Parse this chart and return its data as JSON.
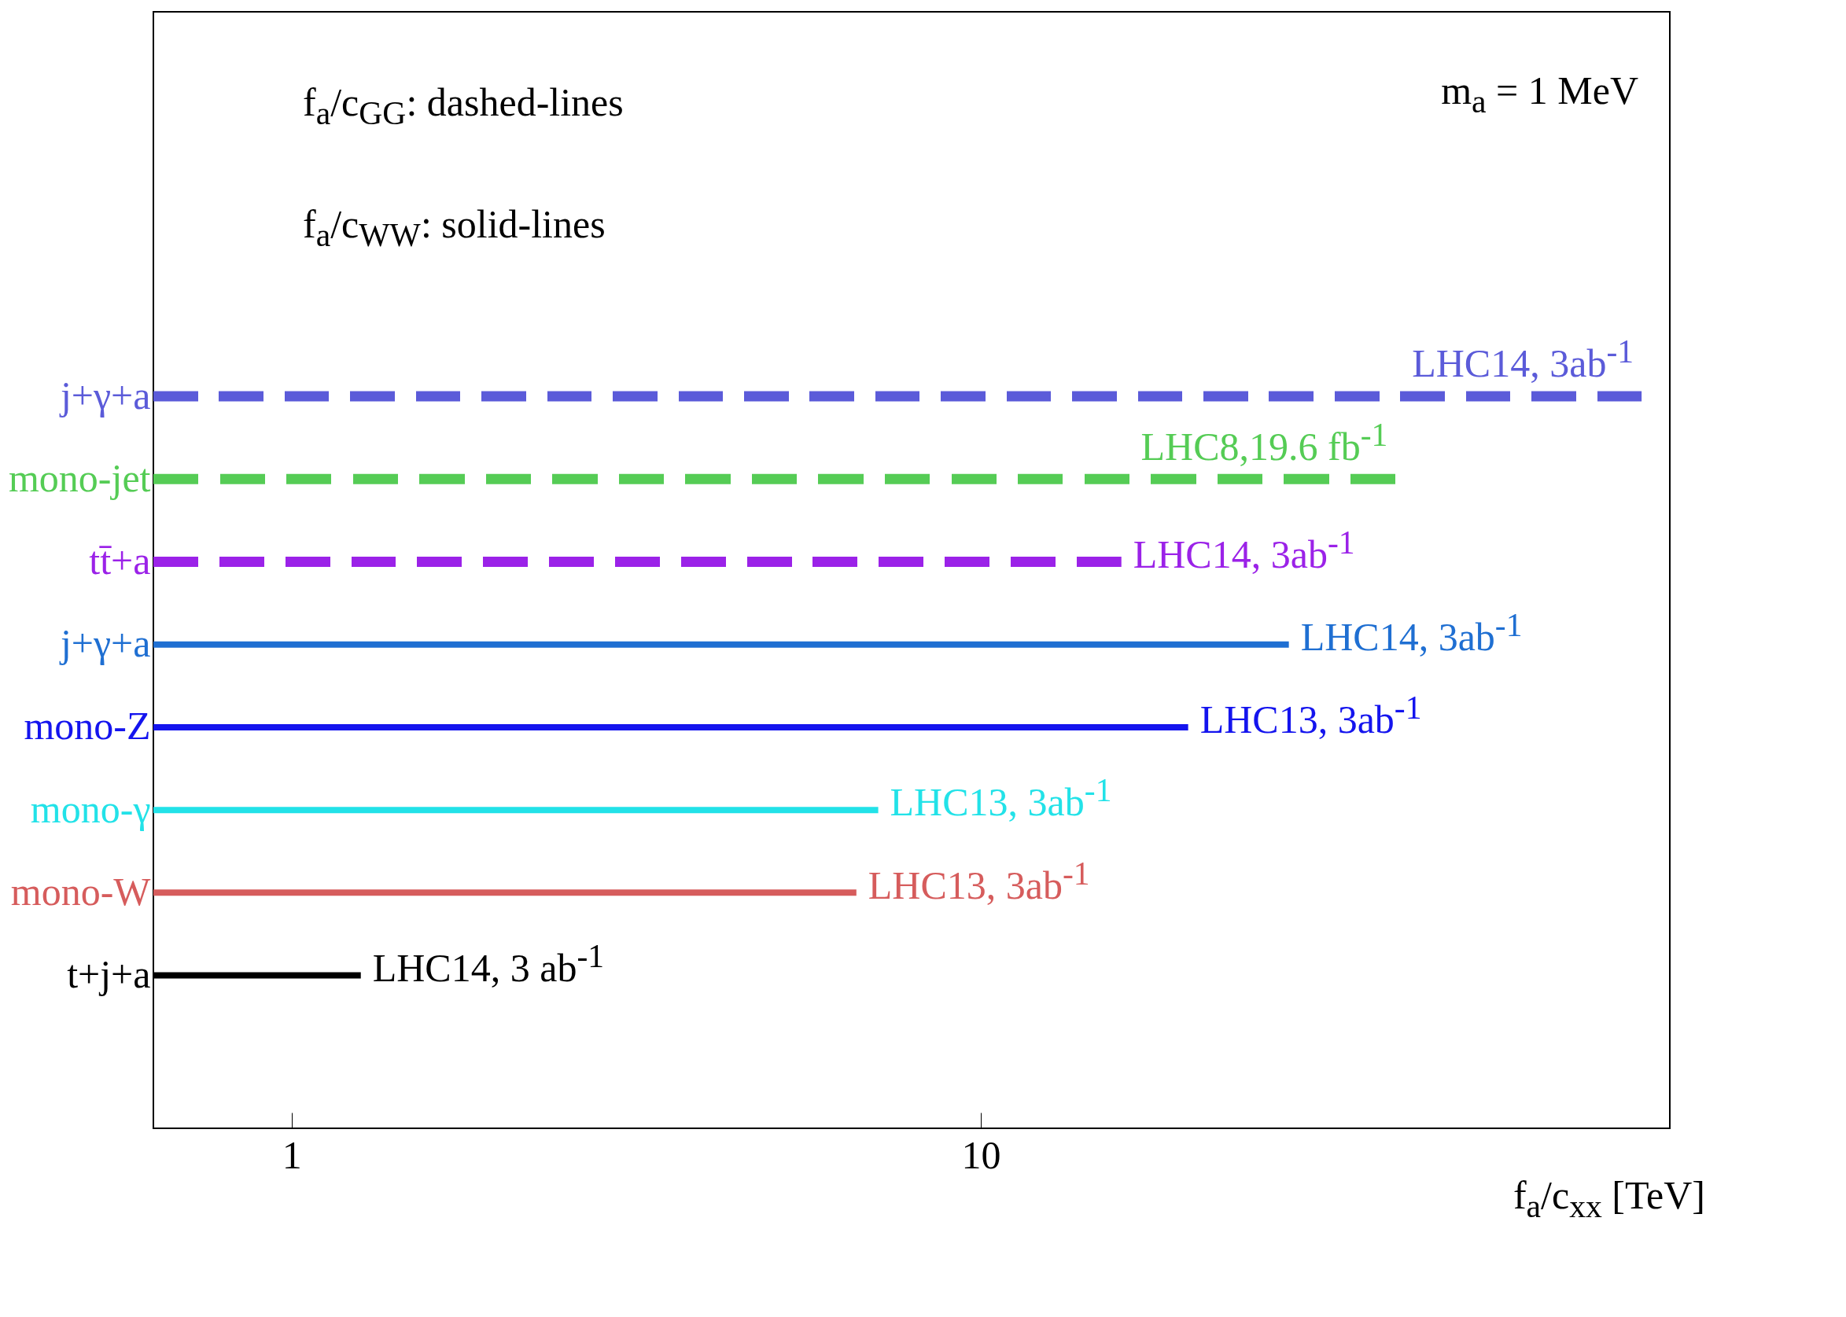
{
  "chart_data": {
    "type": "bar",
    "orientation": "horizontal",
    "log": "x",
    "title": "m$_{a}$ = 1 MeV",
    "xlabel": "f$_{a}$/c$_{xx}$ [TeV]",
    "categories": [
      "j+γ+a",
      "mono-jet",
      "tt̄+a",
      "j+γ+a",
      "mono-Z",
      "mono-γ",
      "mono-W",
      "t+j+a"
    ],
    "series": [
      {
        "line_style": "dashed",
        "colors": [
          "#5b5bd9",
          "#55cc55",
          "#9b22e8",
          null,
          null,
          null,
          null,
          null
        ],
        "values": [
          91,
          40,
          16,
          null,
          null,
          null,
          null,
          null
        ],
        "value_labels": [
          "LHC14, 3ab$^{-1}$",
          "LHC8,19.6 fb$^{-1}$",
          "LHC14, 3ab$^{-1}$",
          null,
          null,
          null,
          null,
          null
        ]
      },
      {
        "line_style": "solid",
        "colors": [
          null,
          null,
          null,
          "#1f6fd2",
          "#1414ee",
          "#22e2e8",
          "#d65c5c",
          "#000000"
        ],
        "values": [
          null,
          null,
          null,
          28,
          20,
          7.1,
          6.6,
          1.26
        ],
        "value_labels": [
          null,
          null,
          null,
          "LHC14, 3ab$^{-1}$",
          "LHC13, 3ab$^{-1}$",
          "LHC13, 3ab$^{-1}$",
          "LHC13, 3ab$^{-1}$",
          "LHC14, 3 ab$^{-1}$"
        ]
      }
    ],
    "xlim": [
      0.63,
      100
    ],
    "xticks": [
      1,
      10
    ],
    "annotations": [
      "f$_{a}$/c$_{GG}$: dashed-lines",
      "f$_{a}$/c$_{WW}$: solid-lines"
    ]
  }
}
